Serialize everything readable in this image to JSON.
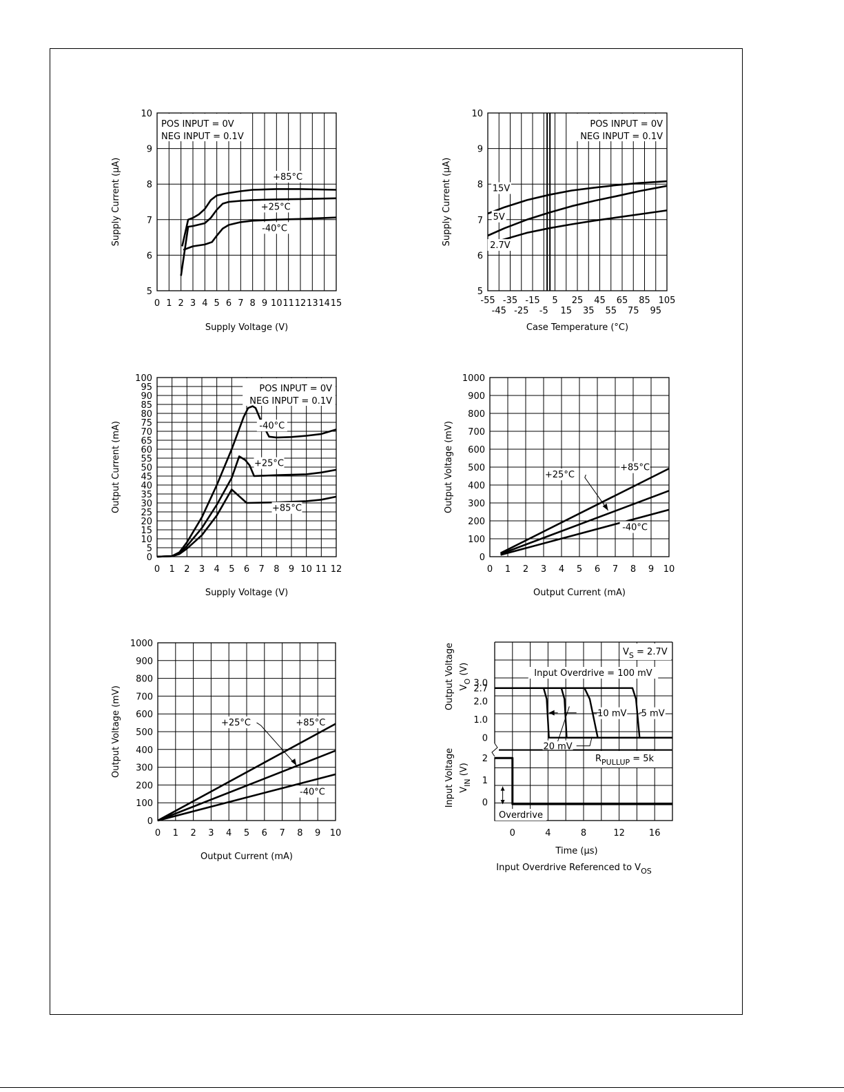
{
  "chart_data": [
    {
      "type": "line",
      "xlabel": "Supply Voltage (V)",
      "ylabel": "Supply Current (µA)",
      "xlim": [
        0,
        15
      ],
      "ylim": [
        5,
        10
      ],
      "xticks": [
        0,
        1,
        2,
        3,
        4,
        5,
        6,
        7,
        8,
        9,
        10,
        11,
        12,
        13,
        14,
        15
      ],
      "xtick_labels": [
        "0",
        "1",
        "2",
        "3",
        "4",
        "5",
        "6",
        "7",
        "8",
        "9",
        "10",
        "11",
        "12",
        "13",
        "14",
        "15"
      ],
      "yticks": [
        5,
        6,
        7,
        8,
        9,
        10
      ],
      "grid": true,
      "notes": [
        "POS INPUT = 0V",
        "NEG INPUT = 0.1V"
      ],
      "series": [
        {
          "name": "+85°C",
          "x": [
            2.1,
            2.6,
            3.0,
            3.5,
            4.0,
            4.5,
            5.0,
            6.0,
            7.0,
            8.0,
            10.0,
            12.0,
            15.0
          ],
          "y": [
            6.25,
            7.0,
            7.05,
            7.15,
            7.3,
            7.55,
            7.68,
            7.75,
            7.8,
            7.84,
            7.86,
            7.86,
            7.84
          ],
          "label_x": 9.9,
          "label_y": 8.12
        },
        {
          "name": "+25°C",
          "x": [
            2.0,
            2.6,
            3.0,
            4.0,
            4.5,
            5.0,
            5.5,
            6.0,
            7.0,
            8.0,
            10.0,
            12.0,
            15.0
          ],
          "y": [
            5.42,
            6.8,
            6.82,
            6.9,
            7.05,
            7.28,
            7.45,
            7.5,
            7.53,
            7.55,
            7.57,
            7.58,
            7.6
          ],
          "label_x": 8.9,
          "label_y": 7.28
        },
        {
          "name": "-40°C",
          "x": [
            2.2,
            3.0,
            4.0,
            4.6,
            5.0,
            5.5,
            6.0,
            7.0,
            8.0,
            10.0,
            12.0,
            15.0
          ],
          "y": [
            6.15,
            6.25,
            6.3,
            6.37,
            6.55,
            6.75,
            6.85,
            6.93,
            6.97,
            7.0,
            7.02,
            7.06
          ],
          "label_x": 8.8,
          "label_y": 6.68
        }
      ]
    },
    {
      "type": "line",
      "xlabel": "Case Temperature (°C)",
      "ylabel": "Supply Current (µA)",
      "xlim": [
        -55,
        105
      ],
      "ylim": [
        5,
        10
      ],
      "xticks_top": [
        -55,
        -35,
        -15,
        5,
        25,
        45,
        65,
        85,
        105
      ],
      "xticks_top_labels": [
        "-55",
        "-35",
        "-15",
        "5",
        "25",
        "45",
        "65",
        "85",
        "105"
      ],
      "xticks_bottom": [
        -45,
        -25,
        -5,
        15,
        35,
        55,
        75,
        95
      ],
      "xticks_bottom_labels": [
        "-45",
        "-25",
        "-5",
        "15",
        "35",
        "55",
        "75",
        "95"
      ],
      "yticks": [
        5,
        6,
        7,
        8,
        9,
        10
      ],
      "grid": true,
      "notes": [
        "POS INPUT = 0V",
        "NEG INPUT = 0.1V"
      ],
      "series": [
        {
          "name": "15V",
          "x": [
            -55,
            -40,
            -20,
            0,
            20,
            40,
            60,
            80,
            105
          ],
          "y": [
            7.17,
            7.35,
            7.55,
            7.7,
            7.82,
            7.9,
            7.97,
            8.03,
            8.08
          ],
          "label_x": -43,
          "label_y": 7.8
        },
        {
          "name": "5V",
          "x": [
            -55,
            -40,
            -20,
            0,
            20,
            40,
            60,
            80,
            105
          ],
          "y": [
            6.55,
            6.76,
            7.0,
            7.2,
            7.38,
            7.53,
            7.66,
            7.8,
            7.95
          ],
          "label_x": -45,
          "label_y": 7.0
        },
        {
          "name": "2.7V",
          "x": [
            -55,
            -40,
            -20,
            0,
            20,
            40,
            60,
            80,
            105
          ],
          "y": [
            6.3,
            6.45,
            6.63,
            6.76,
            6.87,
            6.97,
            7.06,
            7.15,
            7.26
          ],
          "label_x": -44,
          "label_y": 6.2
        }
      ]
    },
    {
      "type": "line",
      "xlabel": "Supply Voltage (V)",
      "ylabel": "Output Current (mA)",
      "xlim": [
        0,
        12
      ],
      "ylim": [
        0,
        100
      ],
      "xticks": [
        0,
        1,
        2,
        3,
        4,
        5,
        6,
        7,
        8,
        9,
        10,
        11,
        12
      ],
      "xtick_labels": [
        "0",
        "1",
        "2",
        "3",
        "4",
        "5",
        "6",
        "7",
        "8",
        "9",
        "10",
        "11",
        "12"
      ],
      "yticks": [
        0,
        5,
        10,
        15,
        20,
        25,
        30,
        35,
        40,
        45,
        50,
        55,
        60,
        65,
        70,
        75,
        80,
        85,
        90,
        95,
        100
      ],
      "grid": true,
      "notes": [
        "POS INPUT = 0V",
        "NEG INPUT = 0.1V"
      ],
      "series": [
        {
          "name": "-40°C",
          "x": [
            0,
            1.0,
            1.5,
            2.0,
            3.0,
            4.0,
            5.0,
            5.8,
            6.1,
            6.4,
            6.6,
            7.0,
            7.5,
            8.0,
            9.0,
            10.0,
            11.0,
            12.0
          ],
          "y": [
            0,
            0.3,
            2.5,
            8,
            22,
            40,
            60,
            78,
            83,
            84,
            83,
            75,
            67,
            66.5,
            66.8,
            67.5,
            68.5,
            71
          ],
          "label_x": 7.7,
          "label_y": 71.5
        },
        {
          "name": "+25°C",
          "x": [
            0,
            1.0,
            1.5,
            2.0,
            3.0,
            4.0,
            5.0,
            5.5,
            5.9,
            6.2,
            6.5,
            8.0,
            10.0,
            11.0,
            12.0
          ],
          "y": [
            0,
            0.3,
            2,
            6,
            16,
            29,
            44,
            56,
            54,
            51,
            45,
            45.5,
            46,
            47,
            48.5
          ],
          "label_x": 7.5,
          "label_y": 50.5
        },
        {
          "name": "+85°C",
          "x": [
            0,
            1.0,
            1.5,
            2.0,
            3.0,
            4.0,
            5.0,
            5.6,
            6.0,
            8.0,
            10.0,
            11.0,
            12.0
          ],
          "y": [
            0,
            0.3,
            1.5,
            4.5,
            12,
            23,
            37.5,
            33,
            30,
            30.3,
            31,
            31.8,
            33.5
          ],
          "label_x": 8.7,
          "label_y": 25.5
        }
      ]
    },
    {
      "type": "line",
      "xlabel": "Output Current (mA)",
      "ylabel": "Output Voltage (mV)",
      "xlim": [
        0,
        10
      ],
      "ylim": [
        0,
        1000
      ],
      "xticks": [
        0,
        1,
        2,
        3,
        4,
        5,
        6,
        7,
        8,
        9,
        10
      ],
      "xtick_labels": [
        "0",
        "1",
        "2",
        "3",
        "4",
        "5",
        "6",
        "7",
        "8",
        "9",
        "10"
      ],
      "yticks": [
        0,
        100,
        200,
        300,
        400,
        500,
        600,
        700,
        800,
        900,
        1000
      ],
      "grid": true,
      "series": [
        {
          "name": "+85°C",
          "x": [
            0.6,
            10
          ],
          "y": [
            20,
            492
          ],
          "label_x": 8.1,
          "label_y": 482
        },
        {
          "name": "+25°C",
          "x": [
            0.6,
            10
          ],
          "y": [
            15,
            368
          ],
          "label_x": 3.9,
          "label_y": 442
        },
        {
          "name": "-40°C",
          "x": [
            0.6,
            10
          ],
          "y": [
            10,
            262
          ],
          "label_x": 8.1,
          "label_y": 148
        }
      ]
    },
    {
      "type": "line",
      "xlabel": "Output Current (mA)",
      "ylabel": "Output Voltage (mV)",
      "xlim": [
        0,
        10
      ],
      "ylim": [
        0,
        1000
      ],
      "xticks": [
        0,
        1,
        2,
        3,
        4,
        5,
        6,
        7,
        8,
        9,
        10
      ],
      "xtick_labels": [
        "0",
        "1",
        "2",
        "3",
        "4",
        "5",
        "6",
        "7",
        "8",
        "9",
        "10"
      ],
      "yticks": [
        0,
        100,
        200,
        300,
        400,
        500,
        600,
        700,
        800,
        900,
        1000
      ],
      "grid": true,
      "series": [
        {
          "name": "+85°C",
          "x": [
            0,
            10
          ],
          "y": [
            0,
            544
          ],
          "label_x": 8.6,
          "label_y": 535
        },
        {
          "name": "+25°C",
          "x": [
            0,
            10
          ],
          "y": [
            0,
            393
          ],
          "label_x": 4.4,
          "label_y": 535
        },
        {
          "name": "-40°C",
          "x": [
            0,
            10
          ],
          "y": [
            0,
            260
          ],
          "label_x": 8.7,
          "label_y": 145
        }
      ]
    },
    {
      "type": "line",
      "xlabel": "Time (µs)",
      "subtitle": "Input Overdrive Referenced to V",
      "subtitle_sub": "OS",
      "xlim": [
        -2,
        18
      ],
      "xticks": [
        0,
        4,
        8,
        12,
        16
      ],
      "xtick_labels": [
        "0",
        "4",
        "8",
        "12",
        "16"
      ],
      "top_panel": {
        "ylabel_line1": "Output Voltage",
        "ylabel_line2": "V",
        "ylabel_line2_sub": "O",
        "ylabel_line2_unit": "(V)",
        "ylim": [
          -0.65,
          5.2
        ],
        "yticks": [
          0,
          1.0,
          2.0,
          2.7,
          3.0
        ],
        "ytick_labels": [
          "0",
          "1.0",
          "2.0",
          "2.7",
          "3.0"
        ],
        "annotation_vs": "V",
        "annotation_vs_sub": "S",
        "annotation_vs_value": "= 2.7V",
        "annotation_overdrive": "Input Overdrive = 100 mV",
        "series": [
          {
            "name": "100 mV",
            "x": [
              -2,
              3.5,
              3.85,
              4.1,
              18
            ],
            "y": [
              2.7,
              2.7,
              2.1,
              0,
              0
            ]
          },
          {
            "name": "20 mV",
            "x": [
              -2,
              5.5,
              5.85,
              6.1,
              18
            ],
            "y": [
              2.7,
              2.7,
              2.1,
              0,
              0
            ]
          },
          {
            "name": "10 mV",
            "x": [
              -2,
              8.1,
              8.7,
              9.6,
              18
            ],
            "y": [
              2.7,
              2.7,
              2.1,
              0,
              0
            ]
          },
          {
            "name": "5 mV",
            "x": [
              -2,
              13.5,
              13.9,
              14.3,
              18
            ],
            "y": [
              2.7,
              2.7,
              2.1,
              0,
              0
            ]
          }
        ],
        "labels": [
          "10 mV",
          "5 mV",
          "20 mV"
        ]
      },
      "bottom_panel": {
        "ylabel_line1": "Input Voltage",
        "ylabel_line2": "V",
        "ylabel_line2_sub": "IN",
        "ylabel_line2_unit": "(V)",
        "ylim": [
          -0.85,
          2.35
        ],
        "yticks": [
          0,
          1,
          2
        ],
        "ytick_labels": [
          "0",
          "1",
          "2"
        ],
        "annotation_rpullup": "R",
        "annotation_rpullup_sub": "PULLUP",
        "annotation_rpullup_value": "= 5k",
        "annotation_overdrive": "Overdrive",
        "series": [
          {
            "name": "V_IN",
            "x": [
              -2,
              0,
              0,
              18
            ],
            "y": [
              2,
              2,
              -0.1,
              -0.1
            ]
          }
        ]
      }
    }
  ]
}
